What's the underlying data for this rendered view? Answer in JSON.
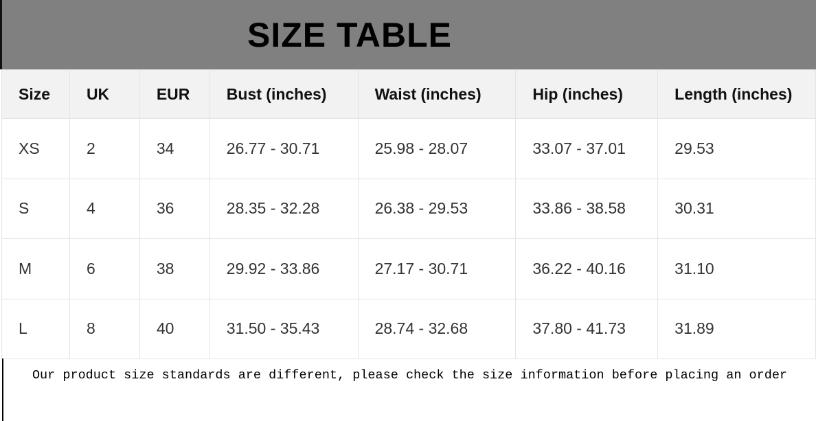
{
  "title": "SIZE TABLE",
  "headers": [
    "Size",
    "UK",
    "EUR",
    "Bust  (inches)",
    "Waist  (inches)",
    "Hip  (inches)",
    "Length  (inches)"
  ],
  "rows": [
    [
      "XS",
      "2",
      "34",
      "26.77 - 30.71",
      "25.98 - 28.07",
      "33.07 - 37.01",
      "29.53"
    ],
    [
      "S",
      "4",
      "36",
      "28.35 - 32.28",
      "26.38 - 29.53",
      "33.86 - 38.58",
      "30.31"
    ],
    [
      "M",
      "6",
      "38",
      "29.92 - 33.86",
      "27.17 - 30.71",
      "36.22 - 40.16",
      "31.10"
    ],
    [
      "L",
      "8",
      "40",
      "31.50 - 35.43",
      "28.74 - 32.68",
      "37.80 - 41.73",
      "31.89"
    ]
  ],
  "note": "Our product size standards are different, please check the size information before placing an order"
}
